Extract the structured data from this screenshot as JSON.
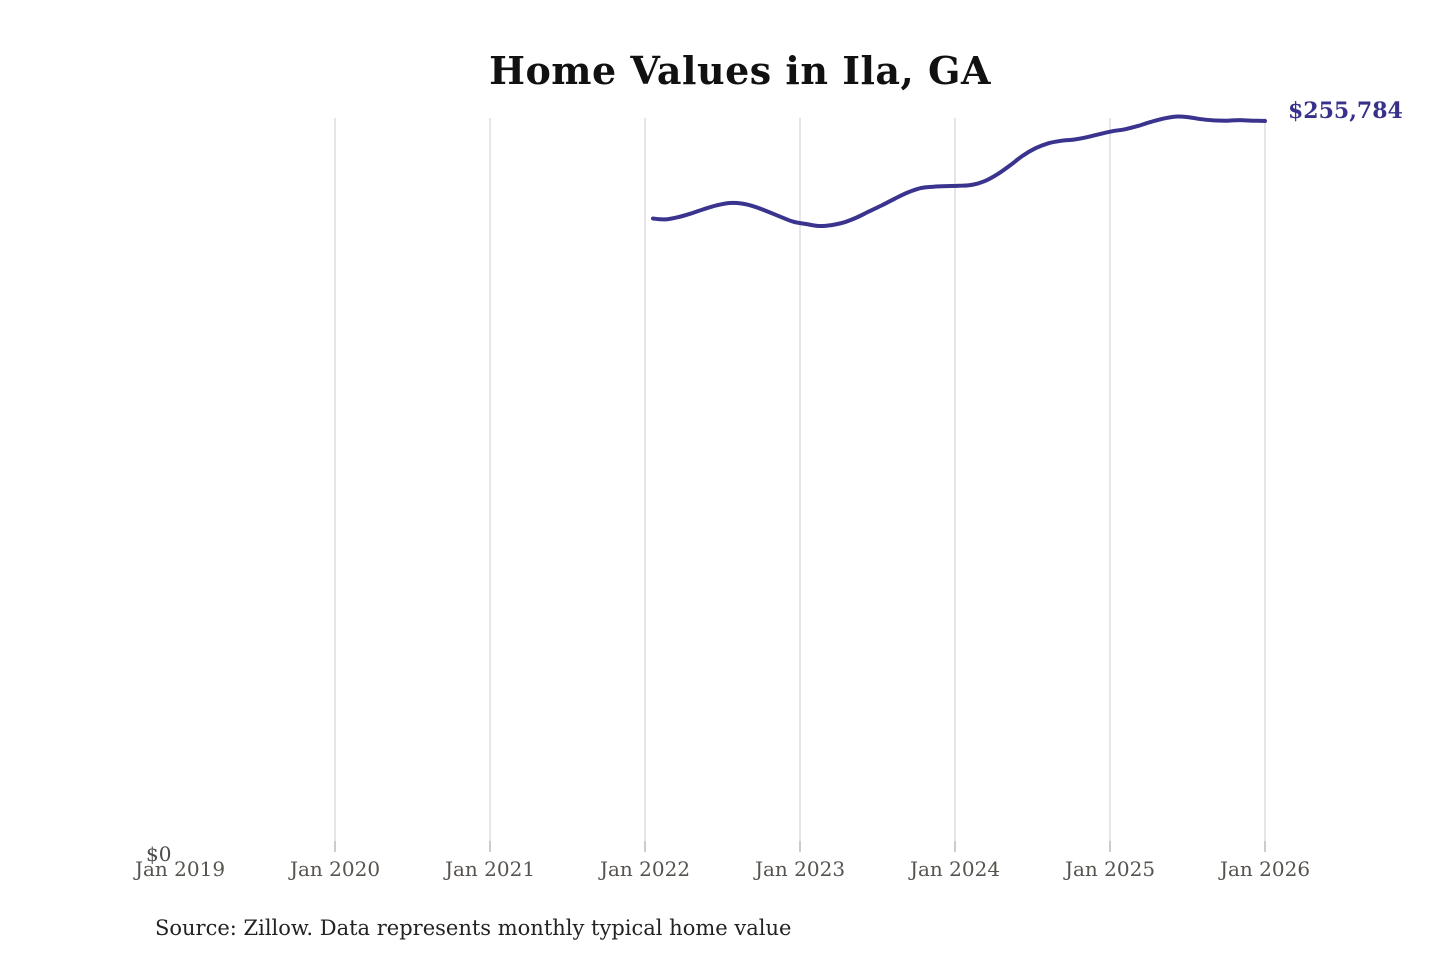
{
  "header": {
    "title": "Home Values in Ila, GA"
  },
  "chart": {
    "end_label": "$255,784",
    "y_zero_label": "$0",
    "line_color": "#3b348f",
    "gridline_color": "#cccccc",
    "tick_color": "#999999",
    "axis_label_color": "#57534f"
  },
  "chart_data": {
    "type": "line",
    "title": "Home Values in Ila, GA",
    "x_axis_labels": [
      "Jan 2019",
      "Jan 2020",
      "Jan 2021",
      "Jan 2022",
      "Jan 2023",
      "Jan 2024",
      "Jan 2025",
      "Jan 2026"
    ],
    "gridlines_at_labels": [
      "Jan 2020",
      "Jan 2021",
      "Jan 2022",
      "Jan 2023",
      "Jan 2024",
      "Jan 2025",
      "Jan 2026"
    ],
    "grid": "vertical-only",
    "legend": "none",
    "ylabel": "",
    "xlabel": "",
    "ylim": [
      0,
      257500
    ],
    "end_value": 255784,
    "series": [
      {
        "name": "Monthly typical home value",
        "x": [
          "2022-01",
          "2022-02",
          "2022-03",
          "2022-04",
          "2022-05",
          "2022-06",
          "2022-07",
          "2022-08",
          "2022-09",
          "2022-10",
          "2022-11",
          "2022-12",
          "2023-01",
          "2023-02",
          "2023-03",
          "2023-04",
          "2023-05",
          "2023-06",
          "2023-07",
          "2023-08",
          "2023-09",
          "2023-10",
          "2023-11",
          "2023-12",
          "2024-01",
          "2024-02",
          "2024-03",
          "2024-04",
          "2024-05",
          "2024-06",
          "2024-07",
          "2024-08",
          "2024-09",
          "2024-10",
          "2024-11",
          "2024-12",
          "2025-01",
          "2025-02",
          "2025-03",
          "2025-04",
          "2025-05",
          "2025-06",
          "2025-07",
          "2025-08",
          "2025-09",
          "2025-10",
          "2025-11",
          "2025-12",
          "2026-01"
        ],
        "values": [
          221800,
          221500,
          222300,
          223600,
          225100,
          226400,
          227200,
          227000,
          225900,
          224200,
          222400,
          220700,
          219900,
          219200,
          219500,
          220500,
          222200,
          224400,
          226500,
          228800,
          230900,
          232400,
          232900,
          233100,
          233200,
          233500,
          234800,
          237200,
          240300,
          243700,
          246300,
          248000,
          248900,
          249300,
          250100,
          251200,
          252200,
          252900,
          254000,
          255400,
          256600,
          257300,
          257100,
          256400,
          256000,
          255900,
          256100,
          255900,
          255784
        ]
      }
    ]
  },
  "footer": {
    "source": "Source: Zillow. Data represents monthly typical home value"
  }
}
